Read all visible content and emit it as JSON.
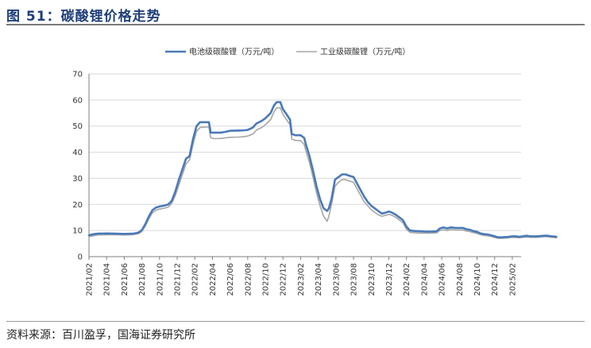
{
  "header": {
    "title": "图 51：碳酸锂价格走势"
  },
  "footer": {
    "source": "资料来源：百川盈孚，国海证券研究所"
  },
  "chart_data": {
    "type": "line",
    "ylim": [
      0,
      70
    ],
    "yticks": [
      0,
      10,
      20,
      30,
      40,
      50,
      60,
      70
    ],
    "grid": true,
    "legend_position": "top-center",
    "xlabels": [
      "2021/02",
      "2021/04",
      "2021/06",
      "2021/08",
      "2021/10",
      "2021/12",
      "2022/02",
      "2022/04",
      "2022/06",
      "2022/08",
      "2022/10",
      "2022/12",
      "2023/02",
      "2023/04",
      "2023/06",
      "2023/08",
      "2023/10",
      "2023/12",
      "2024/02",
      "2024/04",
      "2024/06",
      "2024/08",
      "2024/10",
      "2024/12",
      "2025/02"
    ],
    "series": [
      {
        "name": "电池级碳酸锂（万元/吨）",
        "color": "#4a7ab8",
        "points": [
          [
            0,
            8.2
          ],
          [
            0.5,
            8.6
          ],
          [
            1,
            8.8
          ],
          [
            2,
            8.9
          ],
          [
            3,
            8.8
          ],
          [
            4,
            8.7
          ],
          [
            5,
            8.8
          ],
          [
            5.6,
            9.2
          ],
          [
            6,
            10.2
          ],
          [
            6.4,
            12.5
          ],
          [
            6.8,
            15.5
          ],
          [
            7.2,
            17.8
          ],
          [
            7.6,
            18.8
          ],
          [
            8,
            19.2
          ],
          [
            8.6,
            19.6
          ],
          [
            9,
            20.0
          ],
          [
            9.4,
            21.5
          ],
          [
            9.8,
            25.0
          ],
          [
            10.2,
            29.5
          ],
          [
            10.6,
            33.5
          ],
          [
            11,
            37.5
          ],
          [
            11.4,
            38.5
          ],
          [
            11.8,
            45.0
          ],
          [
            12.2,
            50.0
          ],
          [
            12.6,
            51.5
          ],
          [
            13.2,
            51.5
          ],
          [
            13.6,
            51.5
          ],
          [
            13.8,
            47.5
          ],
          [
            14.2,
            47.5
          ],
          [
            15,
            47.5
          ],
          [
            15.5,
            47.8
          ],
          [
            16,
            48.2
          ],
          [
            17,
            48.3
          ],
          [
            17.6,
            48.4
          ],
          [
            18,
            48.5
          ],
          [
            18.6,
            49.5
          ],
          [
            19,
            51.0
          ],
          [
            19.6,
            52.0
          ],
          [
            20,
            53.0
          ],
          [
            20.6,
            55.0
          ],
          [
            21,
            58.0
          ],
          [
            21.3,
            59.2
          ],
          [
            21.7,
            59.2
          ],
          [
            22,
            56.5
          ],
          [
            22.4,
            54.5
          ],
          [
            22.8,
            52.5
          ],
          [
            23,
            47.0
          ],
          [
            23.4,
            46.5
          ],
          [
            24,
            46.5
          ],
          [
            24.4,
            45.5
          ],
          [
            24.6,
            43.0
          ],
          [
            25,
            38.5
          ],
          [
            25.4,
            33.0
          ],
          [
            25.8,
            27.0
          ],
          [
            26.2,
            22.0
          ],
          [
            26.6,
            18.5
          ],
          [
            27,
            17.5
          ],
          [
            27.2,
            18.5
          ],
          [
            27.5,
            22.0
          ],
          [
            27.9,
            29.5
          ],
          [
            28.3,
            30.5
          ],
          [
            28.7,
            31.5
          ],
          [
            29.1,
            31.5
          ],
          [
            29.5,
            31.0
          ],
          [
            30,
            30.5
          ],
          [
            30.4,
            28.0
          ],
          [
            30.8,
            25.5
          ],
          [
            31.2,
            23.0
          ],
          [
            31.6,
            21.0
          ],
          [
            32,
            19.5
          ],
          [
            32.4,
            18.5
          ],
          [
            32.8,
            17.5
          ],
          [
            33.2,
            16.5
          ],
          [
            33.6,
            16.8
          ],
          [
            34,
            17.3
          ],
          [
            34.4,
            16.8
          ],
          [
            34.8,
            16.0
          ],
          [
            35.2,
            15.0
          ],
          [
            35.6,
            14.0
          ],
          [
            36,
            11.5
          ],
          [
            36.4,
            10.0
          ],
          [
            37,
            9.8
          ],
          [
            37.6,
            9.7
          ],
          [
            38.2,
            9.6
          ],
          [
            38.8,
            9.6
          ],
          [
            39.4,
            9.7
          ],
          [
            39.8,
            10.8
          ],
          [
            40.2,
            11.2
          ],
          [
            40.6,
            10.8
          ],
          [
            41,
            11.2
          ],
          [
            41.6,
            11.0
          ],
          [
            42,
            11.0
          ],
          [
            42.4,
            11.0
          ],
          [
            42.8,
            10.5
          ],
          [
            43.2,
            10.3
          ],
          [
            43.6,
            9.8
          ],
          [
            44,
            9.5
          ],
          [
            44.4,
            8.9
          ],
          [
            44.8,
            8.6
          ],
          [
            45.2,
            8.5
          ],
          [
            45.6,
            8.2
          ],
          [
            46,
            7.8
          ],
          [
            46.4,
            7.4
          ],
          [
            46.8,
            7.4
          ],
          [
            47.2,
            7.5
          ],
          [
            47.6,
            7.6
          ],
          [
            48,
            7.8
          ],
          [
            48.4,
            7.8
          ],
          [
            48.8,
            7.6
          ],
          [
            49.2,
            7.8
          ],
          [
            49.6,
            8.0
          ],
          [
            50,
            7.8
          ],
          [
            50.4,
            7.8
          ],
          [
            50.8,
            7.8
          ],
          [
            51.2,
            7.9
          ],
          [
            51.6,
            8.0
          ],
          [
            52,
            8.0
          ],
          [
            52.4,
            7.8
          ],
          [
            52.8,
            7.7
          ],
          [
            53,
            7.6
          ]
        ]
      },
      {
        "name": "工业级碳酸锂（万元/吨）",
        "color": "#a6a6a6",
        "points": [
          [
            0,
            7.6
          ],
          [
            0.5,
            8.0
          ],
          [
            1,
            8.3
          ],
          [
            2,
            8.4
          ],
          [
            3,
            8.4
          ],
          [
            4,
            8.3
          ],
          [
            5,
            8.4
          ],
          [
            5.6,
            8.8
          ],
          [
            6,
            9.6
          ],
          [
            6.4,
            11.8
          ],
          [
            6.8,
            14.5
          ],
          [
            7.2,
            16.8
          ],
          [
            7.6,
            17.8
          ],
          [
            8,
            18.2
          ],
          [
            8.6,
            18.6
          ],
          [
            9,
            19.0
          ],
          [
            9.4,
            20.5
          ],
          [
            9.8,
            23.5
          ],
          [
            10.2,
            27.5
          ],
          [
            10.6,
            31.5
          ],
          [
            11,
            35.5
          ],
          [
            11.4,
            37.0
          ],
          [
            11.8,
            43.0
          ],
          [
            12.2,
            48.0
          ],
          [
            12.6,
            49.5
          ],
          [
            13.2,
            49.6
          ],
          [
            13.6,
            49.6
          ],
          [
            13.8,
            45.5
          ],
          [
            14.2,
            45.2
          ],
          [
            15,
            45.3
          ],
          [
            15.5,
            45.5
          ],
          [
            16,
            45.7
          ],
          [
            17,
            45.8
          ],
          [
            17.6,
            46.0
          ],
          [
            18,
            46.2
          ],
          [
            18.6,
            47.0
          ],
          [
            19,
            48.5
          ],
          [
            19.6,
            49.5
          ],
          [
            20,
            50.5
          ],
          [
            20.6,
            52.5
          ],
          [
            21,
            55.5
          ],
          [
            21.3,
            57.0
          ],
          [
            21.7,
            57.0
          ],
          [
            22,
            54.5
          ],
          [
            22.4,
            52.5
          ],
          [
            22.8,
            50.5
          ],
          [
            23,
            45.0
          ],
          [
            23.4,
            44.5
          ],
          [
            24,
            44.5
          ],
          [
            24.4,
            43.0
          ],
          [
            24.6,
            40.5
          ],
          [
            25,
            36.0
          ],
          [
            25.4,
            30.5
          ],
          [
            25.8,
            24.5
          ],
          [
            26.2,
            19.5
          ],
          [
            26.6,
            15.5
          ],
          [
            27,
            13.5
          ],
          [
            27.2,
            15.5
          ],
          [
            27.5,
            20.0
          ],
          [
            27.9,
            27.0
          ],
          [
            28.3,
            28.5
          ],
          [
            28.7,
            29.5
          ],
          [
            29.1,
            29.5
          ],
          [
            29.5,
            29.0
          ],
          [
            30,
            28.5
          ],
          [
            30.4,
            26.0
          ],
          [
            30.8,
            23.5
          ],
          [
            31.2,
            21.0
          ],
          [
            31.6,
            19.5
          ],
          [
            32,
            18.0
          ],
          [
            32.4,
            17.0
          ],
          [
            32.8,
            16.0
          ],
          [
            33.2,
            15.5
          ],
          [
            33.6,
            15.8
          ],
          [
            34,
            16.2
          ],
          [
            34.4,
            15.8
          ],
          [
            34.8,
            15.0
          ],
          [
            35.2,
            14.0
          ],
          [
            35.6,
            13.0
          ],
          [
            36,
            10.5
          ],
          [
            36.4,
            9.3
          ],
          [
            37,
            9.1
          ],
          [
            37.6,
            9.0
          ],
          [
            38.2,
            9.0
          ],
          [
            38.8,
            9.0
          ],
          [
            39.4,
            9.1
          ],
          [
            39.8,
            10.0
          ],
          [
            40.2,
            10.3
          ],
          [
            40.6,
            10.0
          ],
          [
            41,
            10.4
          ],
          [
            41.6,
            10.2
          ],
          [
            42,
            10.2
          ],
          [
            42.4,
            10.2
          ],
          [
            42.8,
            9.8
          ],
          [
            43.2,
            9.6
          ],
          [
            43.6,
            9.2
          ],
          [
            44,
            8.9
          ],
          [
            44.4,
            8.4
          ],
          [
            44.8,
            8.1
          ],
          [
            45.2,
            8.0
          ],
          [
            45.6,
            7.7
          ],
          [
            46,
            7.3
          ],
          [
            46.4,
            7.0
          ],
          [
            46.8,
            7.0
          ],
          [
            47.2,
            7.1
          ],
          [
            47.6,
            7.2
          ],
          [
            48,
            7.4
          ],
          [
            48.4,
            7.3
          ],
          [
            48.8,
            7.2
          ],
          [
            49.2,
            7.4
          ],
          [
            49.6,
            7.5
          ],
          [
            50,
            7.4
          ],
          [
            50.4,
            7.4
          ],
          [
            50.8,
            7.4
          ],
          [
            51.2,
            7.5
          ],
          [
            51.6,
            7.6
          ],
          [
            52,
            7.6
          ],
          [
            52.4,
            7.4
          ],
          [
            52.8,
            7.3
          ],
          [
            53,
            7.2
          ]
        ]
      }
    ]
  }
}
